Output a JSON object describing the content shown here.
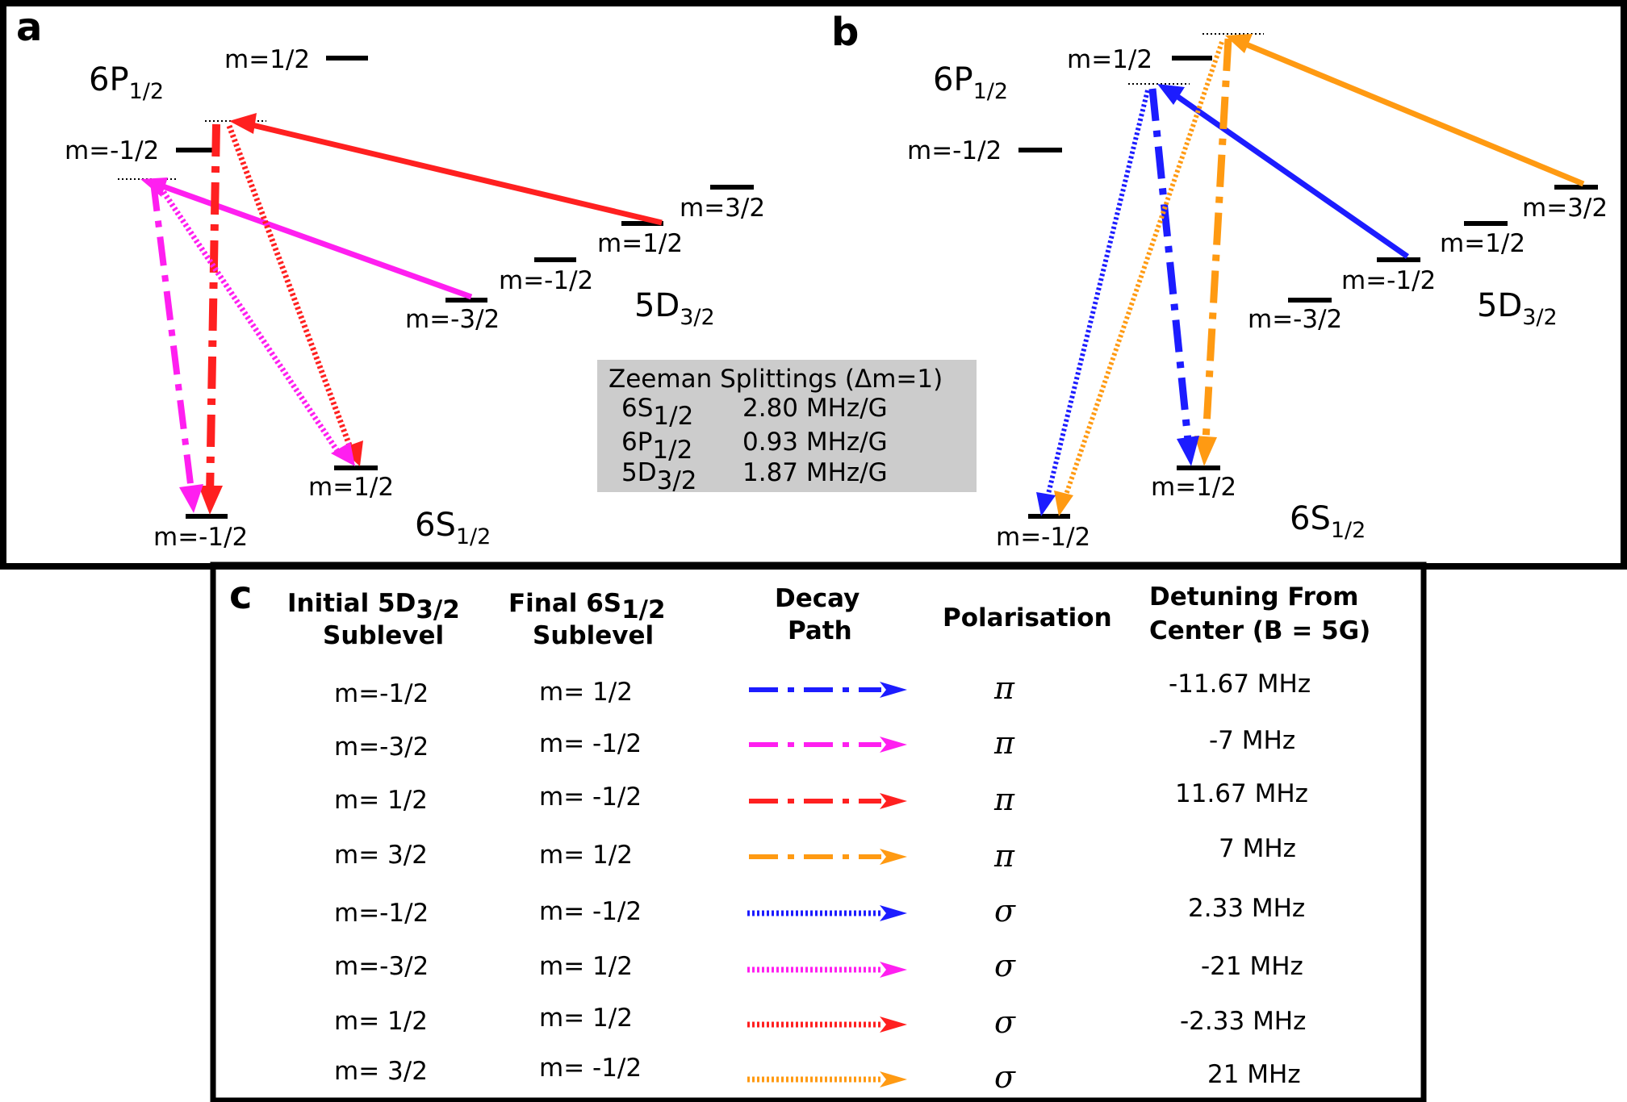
{
  "colors": {
    "blue": "#1c1cff",
    "magenta": "#ff1ff0",
    "red": "#ff2020",
    "orange": "#ff9a12",
    "table_bg": "#cccccc"
  },
  "panel_a": {
    "letter": "a",
    "p_term": "6P",
    "p_sub": "1/2",
    "p_top": "m=1/2",
    "p_bot": "m=-1/2",
    "d_term": "5D",
    "d_sub": "3/2",
    "d_levels": [
      "m=3/2",
      "m=1/2",
      "m=-1/2",
      "m=-3/2"
    ],
    "s_term": "6S",
    "s_sub": "1/2",
    "s_top": "m=1/2",
    "s_bot": "m=-1/2"
  },
  "panel_b": {
    "letter": "b",
    "p_term": "6P",
    "p_sub": "1/2",
    "p_top": "m=1/2",
    "p_bot": "m=-1/2",
    "d_term": "5D",
    "d_sub": "3/2",
    "d_levels": [
      "m=3/2",
      "m=1/2",
      "m=-1/2",
      "m=-3/2"
    ],
    "s_term": "6S",
    "s_sub": "1/2",
    "s_top": "m=1/2",
    "s_bot": "m=-1/2"
  },
  "zeeman": {
    "title": "Zeeman Splittings (Δm=1)",
    "rows": [
      {
        "term": "6S",
        "sub": "1/2",
        "value": "2.80 MHz/G"
      },
      {
        "term": "6P",
        "sub": "1/2",
        "value": "0.93 MHz/G"
      },
      {
        "term": "5D",
        "sub": "3/2",
        "value": "1.87 MHz/G"
      }
    ]
  },
  "table": {
    "letter": "c",
    "headers": {
      "initial_l1": "Initial 5D",
      "initial_sub": "3/2",
      "initial_l2": "Sublevel",
      "final_l1": "Final 6S",
      "final_sub": "1/2",
      "final_l2": "Sublevel",
      "decay_l1": "Decay",
      "decay_l2": "Path",
      "polarisation": "Polarisation",
      "detuning_l1": "Detuning From",
      "detuning_l2": "Center (B = 5G)"
    },
    "rows": [
      {
        "initial": "m=-1/2",
        "final": "m=  1/2",
        "color": "blue",
        "style": "dashdot",
        "polarisation": "π",
        "detuning": "-11.67 MHz"
      },
      {
        "initial": "m=-3/2",
        "final": "m= -1/2",
        "color": "magenta",
        "style": "dashdot",
        "polarisation": "π",
        "detuning": "-7 MHz"
      },
      {
        "initial": "m= 1/2",
        "final": "m= -1/2",
        "color": "red",
        "style": "dashdot",
        "polarisation": "π",
        "detuning": "11.67 MHz"
      },
      {
        "initial": "m= 3/2",
        "final": "m=  1/2",
        "color": "orange",
        "style": "dashdot",
        "polarisation": "π",
        "detuning": "7 MHz"
      },
      {
        "initial": "m=-1/2",
        "final": "m= -1/2",
        "color": "blue",
        "style": "dotted",
        "polarisation": "σ",
        "detuning": "2.33 MHz"
      },
      {
        "initial": "m=-3/2",
        "final": "m=  1/2",
        "color": "magenta",
        "style": "dotted",
        "polarisation": "σ",
        "detuning": "-21 MHz"
      },
      {
        "initial": "m= 1/2",
        "final": "m=  1/2",
        "color": "red",
        "style": "dotted",
        "polarisation": "σ",
        "detuning": "-2.33 MHz"
      },
      {
        "initial": "m= 3/2",
        "final": "m= -1/2",
        "color": "orange",
        "style": "dotted",
        "polarisation": "σ",
        "detuning": "21 MHz"
      }
    ]
  }
}
